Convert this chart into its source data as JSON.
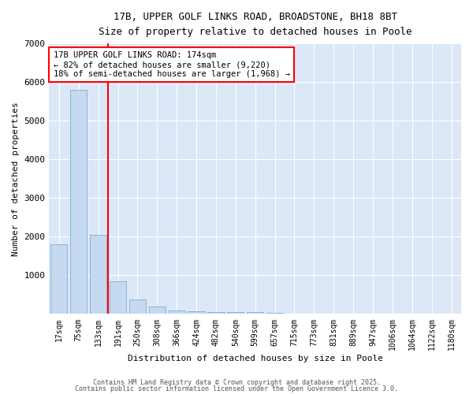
{
  "title": "17B, UPPER GOLF LINKS ROAD, BROADSTONE, BH18 8BT",
  "subtitle": "Size of property relative to detached houses in Poole",
  "xlabel": "Distribution of detached houses by size in Poole",
  "ylabel": "Number of detached properties",
  "bar_color": "#c5d9f0",
  "bar_edge_color": "#7aadd4",
  "plot_bg_color": "#dce8f8",
  "fig_bg_color": "#ffffff",
  "grid_color": "#ffffff",
  "categories": [
    "17sqm",
    "75sqm",
    "133sqm",
    "191sqm",
    "250sqm",
    "308sqm",
    "366sqm",
    "424sqm",
    "482sqm",
    "540sqm",
    "599sqm",
    "657sqm",
    "715sqm",
    "773sqm",
    "831sqm",
    "889sqm",
    "947sqm",
    "1006sqm",
    "1064sqm",
    "1122sqm",
    "1180sqm"
  ],
  "values": [
    1800,
    5800,
    2050,
    850,
    375,
    200,
    100,
    80,
    55,
    50,
    50,
    20,
    0,
    0,
    0,
    0,
    0,
    0,
    0,
    0,
    0
  ],
  "red_line_index": 2.5,
  "annotation_text": "17B UPPER GOLF LINKS ROAD: 174sqm\n← 82% of detached houses are smaller (9,220)\n18% of semi-detached houses are larger (1,968) →",
  "ylim": [
    0,
    7000
  ],
  "yticks": [
    0,
    1000,
    2000,
    3000,
    4000,
    5000,
    6000,
    7000
  ],
  "footer1": "Contains HM Land Registry data © Crown copyright and database right 2025.",
  "footer2": "Contains public sector information licensed under the Open Government Licence 3.0."
}
